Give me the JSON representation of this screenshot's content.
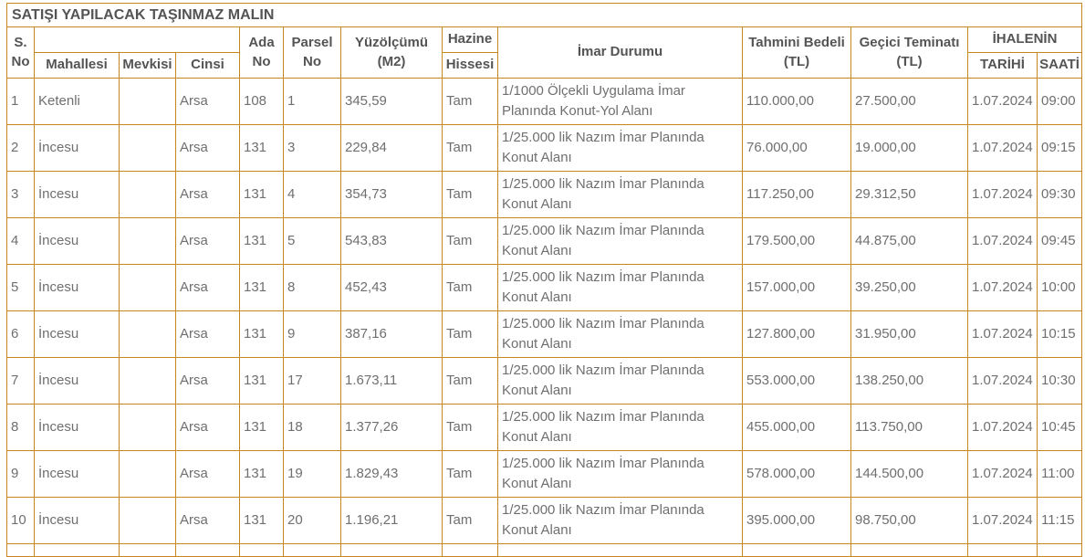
{
  "title": "SATIŞI YAPILACAK TAŞINMAZ MALIN",
  "colors": {
    "border": "#c8871a",
    "header_text": "#545454",
    "data_text": "#6f6f6f",
    "background": "#ffffff"
  },
  "header": {
    "s_no_line1": "S.",
    "s_no_line2": "No",
    "mahallesi": "Mahallesi",
    "mevkisi": "Mevkisi",
    "cinsi": "Cinsi",
    "ada_line1": "Ada",
    "ada_line2": "No",
    "parsel_line1": "Parsel",
    "parsel_line2": "No",
    "yuzolcumu_line1": "Yüzölçümü",
    "yuzolcumu_line2": "(M2)",
    "hazine": "Hazine",
    "hissesi": "Hissesi",
    "imar_durumu": "İmar Durumu",
    "tahmini_line1": "Tahmini Bedeli",
    "tahmini_line2": "(TL)",
    "gecici_line1": "Geçici Teminatı",
    "gecici_line2": "(TL)",
    "ihalenin": "İHALENİN",
    "tarihi": "TARİHİ",
    "saati": "SAATİ"
  },
  "rows": [
    {
      "s_no": "1",
      "mahallesi": "Ketenli",
      "mevkisi": "",
      "cinsi": "Arsa",
      "ada_no": "108",
      "parsel_no": "1",
      "yuzolcumu_m2": "345,59",
      "hazine_hissesi": "Tam",
      "imar_durumu": "1/1000 Ölçekli Uygulama İmar Planında Konut-Yol Alanı",
      "tahmini_bedeli_tl": "110.000,00",
      "gecici_teminati_tl": "27.500,00",
      "ihale_tarihi": "1.07.2024",
      "ihale_saati": "09:00"
    },
    {
      "s_no": "2",
      "mahallesi": "İncesu",
      "mevkisi": "",
      "cinsi": "Arsa",
      "ada_no": "131",
      "parsel_no": "3",
      "yuzolcumu_m2": "229,84",
      "hazine_hissesi": "Tam",
      "imar_durumu": "1/25.000 lik Nazım İmar Planında Konut Alanı",
      "tahmini_bedeli_tl": "76.000,00",
      "gecici_teminati_tl": "19.000,00",
      "ihale_tarihi": "1.07.2024",
      "ihale_saati": "09:15"
    },
    {
      "s_no": "3",
      "mahallesi": "İncesu",
      "mevkisi": "",
      "cinsi": "Arsa",
      "ada_no": "131",
      "parsel_no": "4",
      "yuzolcumu_m2": "354,73",
      "hazine_hissesi": "Tam",
      "imar_durumu": "1/25.000 lik Nazım İmar Planında Konut Alanı",
      "tahmini_bedeli_tl": "117.250,00",
      "gecici_teminati_tl": "29.312,50",
      "ihale_tarihi": "1.07.2024",
      "ihale_saati": "09:30"
    },
    {
      "s_no": "4",
      "mahallesi": "İncesu",
      "mevkisi": "",
      "cinsi": "Arsa",
      "ada_no": "131",
      "parsel_no": "5",
      "yuzolcumu_m2": "543,83",
      "hazine_hissesi": "Tam",
      "imar_durumu": "1/25.000 lik Nazım İmar Planında Konut Alanı",
      "tahmini_bedeli_tl": "179.500,00",
      "gecici_teminati_tl": "44.875,00",
      "ihale_tarihi": "1.07.2024",
      "ihale_saati": "09:45"
    },
    {
      "s_no": "5",
      "mahallesi": "İncesu",
      "mevkisi": "",
      "cinsi": "Arsa",
      "ada_no": "131",
      "parsel_no": "8",
      "yuzolcumu_m2": "452,43",
      "hazine_hissesi": "Tam",
      "imar_durumu": "1/25.000 lik Nazım İmar Planında Konut Alanı",
      "tahmini_bedeli_tl": "157.000,00",
      "gecici_teminati_tl": "39.250,00",
      "ihale_tarihi": "1.07.2024",
      "ihale_saati": "10:00"
    },
    {
      "s_no": "6",
      "mahallesi": "İncesu",
      "mevkisi": "",
      "cinsi": "Arsa",
      "ada_no": "131",
      "parsel_no": "9",
      "yuzolcumu_m2": "387,16",
      "hazine_hissesi": "Tam",
      "imar_durumu": "1/25.000 lik Nazım İmar Planında Konut Alanı",
      "tahmini_bedeli_tl": "127.800,00",
      "gecici_teminati_tl": "31.950,00",
      "ihale_tarihi": "1.07.2024",
      "ihale_saati": "10:15"
    },
    {
      "s_no": "7",
      "mahallesi": "İncesu",
      "mevkisi": "",
      "cinsi": "Arsa",
      "ada_no": "131",
      "parsel_no": "17",
      "yuzolcumu_m2": "1.673,11",
      "hazine_hissesi": "Tam",
      "imar_durumu": "1/25.000 lik Nazım İmar Planında Konut Alanı",
      "tahmini_bedeli_tl": "553.000,00",
      "gecici_teminati_tl": "138.250,00",
      "ihale_tarihi": "1.07.2024",
      "ihale_saati": "10:30"
    },
    {
      "s_no": "8",
      "mahallesi": "İncesu",
      "mevkisi": "",
      "cinsi": "Arsa",
      "ada_no": "131",
      "parsel_no": "18",
      "yuzolcumu_m2": "1.377,26",
      "hazine_hissesi": "Tam",
      "imar_durumu": "1/25.000 lik Nazım İmar Planında Konut Alanı",
      "tahmini_bedeli_tl": "455.000,00",
      "gecici_teminati_tl": "113.750,00",
      "ihale_tarihi": "1.07.2024",
      "ihale_saati": "10:45"
    },
    {
      "s_no": "9",
      "mahallesi": "İncesu",
      "mevkisi": "",
      "cinsi": "Arsa",
      "ada_no": "131",
      "parsel_no": "19",
      "yuzolcumu_m2": "1.829,43",
      "hazine_hissesi": "Tam",
      "imar_durumu": "1/25.000 lik Nazım İmar Planında Konut Alanı",
      "tahmini_bedeli_tl": "578.000,00",
      "gecici_teminati_tl": "144.500,00",
      "ihale_tarihi": "1.07.2024",
      "ihale_saati": "11:00"
    },
    {
      "s_no": "10",
      "mahallesi": "İncesu",
      "mevkisi": "",
      "cinsi": "Arsa",
      "ada_no": "131",
      "parsel_no": "20",
      "yuzolcumu_m2": "1.196,21",
      "hazine_hissesi": "Tam",
      "imar_durumu": "1/25.000 lik Nazım İmar Planında Konut Alanı",
      "tahmini_bedeli_tl": "395.000,00",
      "gecici_teminati_tl": "98.750,00",
      "ihale_tarihi": "1.07.2024",
      "ihale_saati": "11:15"
    }
  ]
}
